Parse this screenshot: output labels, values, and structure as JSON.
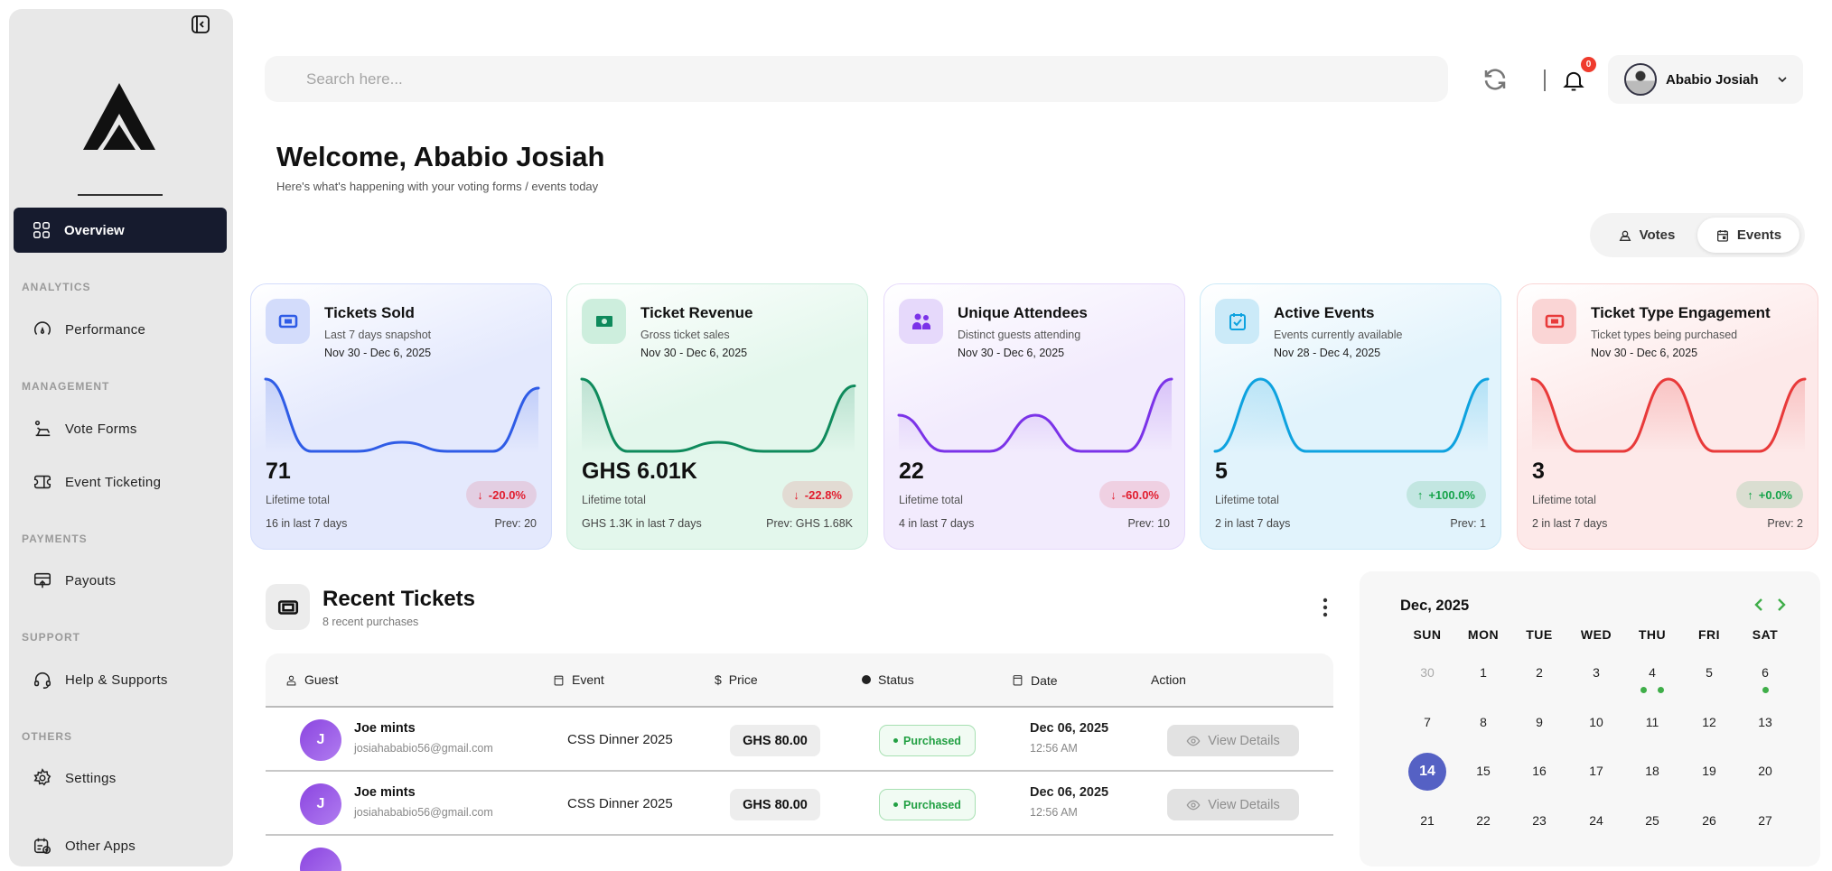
{
  "sidebar": {
    "collapse_icon": "sidebar-collapse-icon",
    "active_item": {
      "label": "Overview",
      "icon": "grid-icon"
    },
    "sections": [
      {
        "title": "ANALYTICS",
        "items": [
          {
            "label": "Performance",
            "icon": "gauge-icon"
          }
        ]
      },
      {
        "title": "MANAGEMENT",
        "items": [
          {
            "label": "Vote Forms",
            "icon": "ballot-icon"
          },
          {
            "label": "Event Ticketing",
            "icon": "ticket-icon"
          }
        ]
      },
      {
        "title": "PAYMENTS",
        "items": [
          {
            "label": "Payouts",
            "icon": "payout-icon"
          }
        ]
      },
      {
        "title": "SUPPORT",
        "items": [
          {
            "label": "Help & Supports",
            "icon": "headset-icon"
          }
        ]
      },
      {
        "title": "OTHERS",
        "items": [
          {
            "label": "Settings",
            "icon": "gear-icon"
          },
          {
            "label": "Other Apps",
            "icon": "apps-icon"
          }
        ]
      }
    ]
  },
  "header": {
    "search_placeholder": "Search here...",
    "notification_count": "0",
    "user_name": "Ababio Josiah"
  },
  "welcome": {
    "title": "Welcome, Ababio Josiah",
    "subtitle": "Here's what's happening with your voting forms / events today"
  },
  "toggle": {
    "votes": "Votes",
    "events": "Events",
    "selected": "Events"
  },
  "cards": [
    {
      "title": "Tickets Sold",
      "subtitle": "Last 7 days snapshot",
      "range": "Nov 30 - Dec 6, 2025",
      "value": "71",
      "lifetime": "Lifetime total",
      "last7": "16 in last 7 days",
      "prev": "Prev: 20",
      "change": "-20.0%",
      "trend": "down",
      "color": "#2f5ce6",
      "bg": "#e4e9fd",
      "icon_bg": "#d3dcfb",
      "icon": "ticket-icon",
      "spark": [
        8,
        0,
        0,
        1,
        0,
        0,
        7
      ]
    },
    {
      "title": "Ticket Revenue",
      "subtitle": "Gross ticket sales",
      "range": "Nov 30 - Dec 6, 2025",
      "value": "GHS 6.01K",
      "lifetime": "Lifetime total",
      "last7": "GHS 1.3K in last 7 days",
      "prev": "Prev: GHS 1.68K",
      "change": "-22.8%",
      "trend": "down",
      "color": "#0f8a5c",
      "bg": "#e3f7ec",
      "icon_bg": "#cdeedd",
      "icon": "cash-icon",
      "spark": [
        640,
        0,
        0,
        80,
        0,
        0,
        580
      ]
    },
    {
      "title": "Unique Attendees",
      "subtitle": "Distinct guests attending",
      "range": "Nov 30 - Dec 6, 2025",
      "value": "22",
      "lifetime": "Lifetime total",
      "last7": "4 in last 7 days",
      "prev": "Prev: 10",
      "change": "-60.0%",
      "trend": "down",
      "color": "#7b33e8",
      "bg": "#f2ebfd",
      "icon_bg": "#e6d9fb",
      "icon": "users-icon",
      "spark": [
        1,
        0,
        0,
        1,
        0,
        0,
        2
      ]
    },
    {
      "title": "Active Events",
      "subtitle": "Events currently available",
      "range": "Nov 28 - Dec 4, 2025",
      "value": "5",
      "lifetime": "Lifetime total",
      "last7": "2 in last 7 days",
      "prev": "Prev: 1",
      "change": "+100.0%",
      "trend": "up",
      "color": "#0ea2df",
      "bg": "#e1f3fc",
      "icon_bg": "#cbeaf8",
      "icon": "calendar-check-icon",
      "spark": [
        0,
        1,
        0,
        0,
        0,
        0,
        1
      ]
    },
    {
      "title": "Ticket Type Engagement",
      "subtitle": "Ticket types being purchased",
      "range": "Nov 30 - Dec 6, 2025",
      "value": "3",
      "lifetime": "Lifetime total",
      "last7": "2 in last 7 days",
      "prev": "Prev: 2",
      "change": "+0.0%",
      "trend": "up",
      "color": "#e83a3a",
      "bg": "#fde9e9",
      "icon_bg": "#fad5d5",
      "icon": "ticket-icon",
      "spark": [
        1,
        0,
        0,
        1,
        0,
        0,
        1
      ]
    }
  ],
  "recent": {
    "title": "Recent Tickets",
    "subtitle": "8 recent purchases",
    "columns": [
      "Guest",
      "Event",
      "Price",
      "Status",
      "Date",
      "Action"
    ],
    "rows": [
      {
        "initial": "J",
        "name": "Joe mints",
        "email": "josiahababio56@gmail.com",
        "event": "CSS Dinner 2025",
        "price": "GHS 80.00",
        "status": "Purchased",
        "date": "Dec 06, 2025",
        "time": "12:56 AM",
        "action": "View Details"
      },
      {
        "initial": "J",
        "name": "Joe mints",
        "email": "josiahababio56@gmail.com",
        "event": "CSS Dinner 2025",
        "price": "GHS 80.00",
        "status": "Purchased",
        "date": "Dec 06, 2025",
        "time": "12:56 AM",
        "action": "View Details"
      }
    ]
  },
  "calendar": {
    "title": "Dec, 2025",
    "weekdays": [
      "SUN",
      "MON",
      "TUE",
      "WED",
      "THU",
      "FRI",
      "SAT"
    ],
    "weeks": [
      [
        "30",
        "1",
        "2",
        "3",
        "4",
        "5",
        "6"
      ],
      [
        "7",
        "8",
        "9",
        "10",
        "11",
        "12",
        "13"
      ],
      [
        "14",
        "15",
        "16",
        "17",
        "18",
        "19",
        "20"
      ],
      [
        "21",
        "22",
        "23",
        "24",
        "25",
        "26",
        "27"
      ]
    ],
    "today": "14",
    "muted": [
      "30"
    ],
    "event_dots": {
      "4": 2,
      "6": 1
    },
    "accent": "#5561c4",
    "dot_color": "#3fae49"
  }
}
